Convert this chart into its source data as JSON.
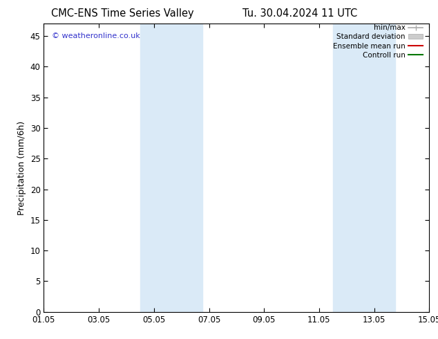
{
  "title_left": "CMC-ENS Time Series Valley",
  "title_right": "Tu. 30.04.2024 11 UTC",
  "ylabel": "Precipitation (mm/6h)",
  "ylim": [
    0,
    47
  ],
  "yticks": [
    0,
    5,
    10,
    15,
    20,
    25,
    30,
    35,
    40,
    45
  ],
  "xlim": [
    0,
    14
  ],
  "xtick_labels": [
    "01.05",
    "03.05",
    "05.05",
    "07.05",
    "09.05",
    "11.05",
    "13.05",
    "15.05"
  ],
  "xtick_positions": [
    0,
    2,
    4,
    6,
    8,
    10,
    12,
    14
  ],
  "shade_bands": [
    {
      "x_start": 3.5,
      "x_end": 5.75
    },
    {
      "x_start": 10.5,
      "x_end": 12.75
    }
  ],
  "shade_color": "#daeaf7",
  "background_color": "#ffffff",
  "watermark": "© weatheronline.co.uk",
  "watermark_color": "#3333cc",
  "legend_entries": [
    {
      "label": "min/max",
      "color": "#aaaaaa",
      "lw": 1.2,
      "type": "line"
    },
    {
      "label": "Standard deviation",
      "color": "#cccccc",
      "type": "patch"
    },
    {
      "label": "Ensemble mean run",
      "color": "#cc0000",
      "lw": 1.5,
      "type": "line"
    },
    {
      "label": "Controll run",
      "color": "#007700",
      "lw": 1.5,
      "type": "line"
    }
  ],
  "title_fontsize": 10.5,
  "ylabel_fontsize": 9,
  "tick_fontsize": 8.5,
  "watermark_fontsize": 8,
  "legend_fontsize": 7.5
}
